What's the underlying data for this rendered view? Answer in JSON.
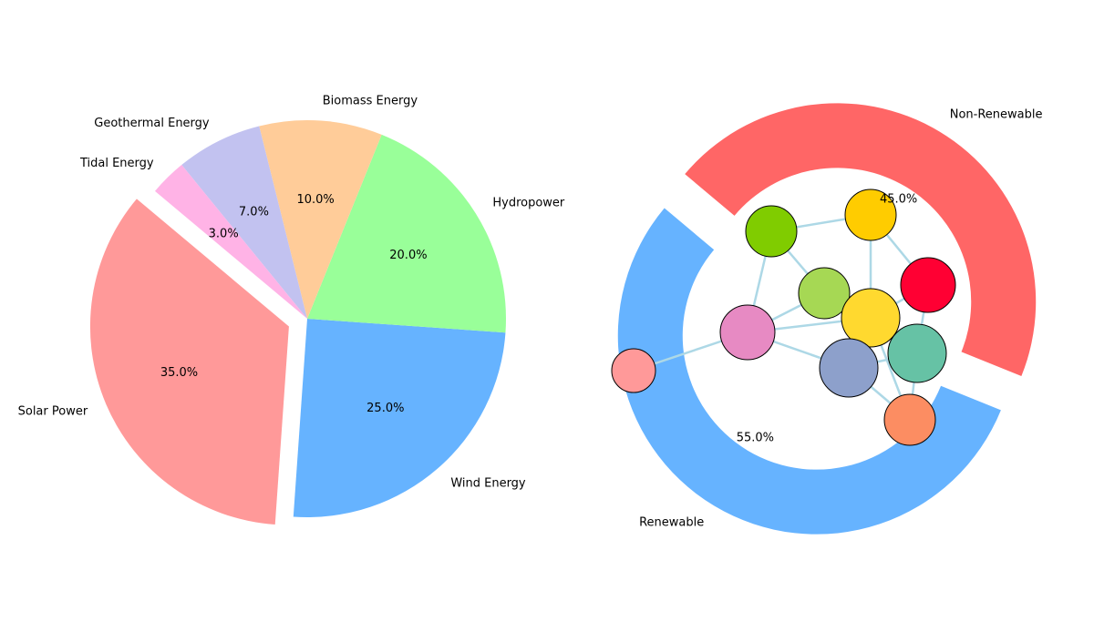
{
  "chart_data": [
    {
      "type": "pie",
      "categories": [
        "Solar Power",
        "Wind Energy",
        "Hydropower",
        "Biomass Energy",
        "Geothermal Energy",
        "Tidal Energy"
      ],
      "values": [
        35,
        25,
        20,
        10,
        7,
        3
      ],
      "percent_labels": [
        "35.0%",
        "25.0%",
        "20.0%",
        "10.0%",
        "7.0%",
        "3.0%"
      ],
      "colors": [
        "#ff9999",
        "#66b3ff",
        "#99ff99",
        "#ffcc99",
        "#c2c2f0",
        "#ffb3e6"
      ],
      "exploded": [
        "Solar Power"
      ]
    },
    {
      "type": "pie",
      "style": "donut",
      "categories": [
        "Renewable",
        "Non-Renewable"
      ],
      "values": [
        55,
        45
      ],
      "percent_labels": [
        "55.0%",
        "45.0%"
      ],
      "colors": [
        "#66b3ff",
        "#ff6666"
      ],
      "network": {
        "node_colors": [
          "#ff9999",
          "#e78ac3",
          "#80cc00",
          "#a6d854",
          "#ffcc00",
          "#ffd92f",
          "#ff0033",
          "#66c2a5",
          "#8da0cb",
          "#fc8d62"
        ],
        "edges": [
          [
            0,
            1
          ],
          [
            1,
            2
          ],
          [
            1,
            3
          ],
          [
            1,
            5
          ],
          [
            1,
            8
          ],
          [
            2,
            3
          ],
          [
            2,
            4
          ],
          [
            3,
            5
          ],
          [
            4,
            5
          ],
          [
            4,
            6
          ],
          [
            5,
            6
          ],
          [
            5,
            7
          ],
          [
            5,
            8
          ],
          [
            6,
            7
          ],
          [
            7,
            8
          ],
          [
            7,
            9
          ],
          [
            8,
            9
          ],
          [
            5,
            9
          ]
        ],
        "edge_color": "#add8e6",
        "node_outline": "#000000"
      }
    }
  ]
}
